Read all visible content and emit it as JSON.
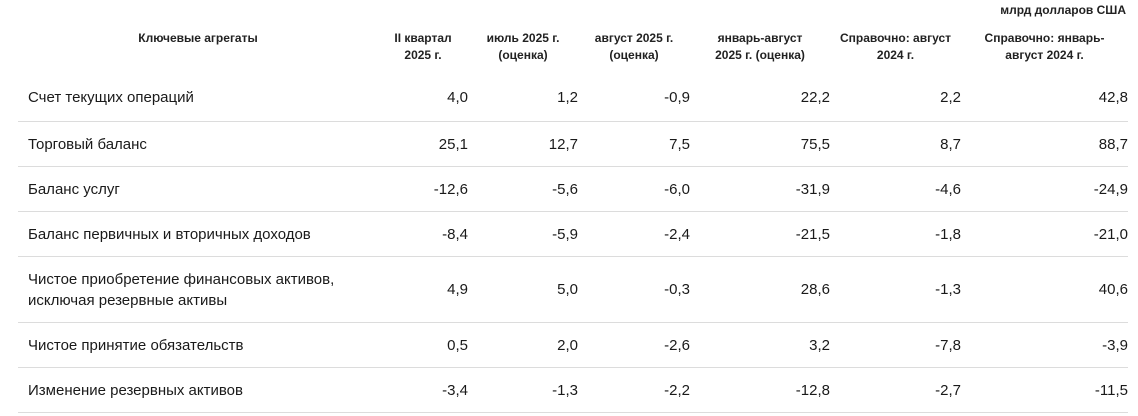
{
  "unit_note": "млрд долларов США",
  "headers": {
    "label": "Ключевые агрегаты",
    "cols": [
      [
        "II квартал",
        "2025 г."
      ],
      [
        "июль 2025 г.",
        "(оценка)"
      ],
      [
        "август 2025 г.",
        "(оценка)"
      ],
      [
        "январь-август",
        "2025 г. (оценка)"
      ],
      [
        "Справочно: август",
        "2024 г."
      ],
      [
        "Справочно: январь-",
        "август 2024 г."
      ]
    ]
  },
  "rows": [
    {
      "label": [
        "Счет текущих операций"
      ],
      "values": [
        "4,0",
        "1,2",
        "-0,9",
        "22,2",
        "2,2",
        "42,8"
      ]
    },
    {
      "label": [
        "Торговый баланс"
      ],
      "values": [
        "25,1",
        "12,7",
        "7,5",
        "75,5",
        "8,7",
        "88,7"
      ]
    },
    {
      "label": [
        "Баланс услуг"
      ],
      "values": [
        "-12,6",
        "-5,6",
        "-6,0",
        "-31,9",
        "-4,6",
        "-24,9"
      ]
    },
    {
      "label": [
        "Баланс первичных и вторичных доходов"
      ],
      "values": [
        "-8,4",
        "-5,9",
        "-2,4",
        "-21,5",
        "-1,8",
        "-21,0"
      ]
    },
    {
      "label": [
        "Чистое приобретение финансовых активов,",
        "исключая резервные активы"
      ],
      "values": [
        "4,9",
        "5,0",
        "-0,3",
        "28,6",
        "-1,3",
        "40,6"
      ]
    },
    {
      "label": [
        "Чистое принятие обязательств"
      ],
      "values": [
        "0,5",
        "2,0",
        "-2,6",
        "3,2",
        "-7,8",
        "-3,9"
      ]
    },
    {
      "label": [
        "Изменение резервных активов"
      ],
      "values": [
        "-3,4",
        "-1,3",
        "-2,2",
        "-12,8",
        "-2,7",
        "-11,5"
      ]
    }
  ]
}
